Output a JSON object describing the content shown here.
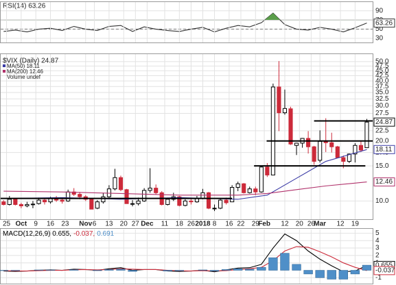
{
  "chart_data": [
    {
      "type": "line",
      "legend": "RSI(14) 63.26",
      "xlim": [
        -1,
        126
      ],
      "ylim": [
        21,
        109
      ],
      "yticks": [
        30,
        50,
        70,
        90
      ],
      "grid": true,
      "midline": 50,
      "overbought": 70,
      "overbought_color": "#5a9e4a",
      "end_labels": true,
      "x": [
        0,
        4,
        8,
        12,
        16,
        20,
        24,
        28,
        32,
        36,
        40,
        44,
        48,
        52,
        56,
        60,
        64,
        68,
        72,
        76,
        80,
        84,
        88,
        92,
        96,
        100,
        104,
        108,
        112,
        116,
        120,
        124
      ],
      "series": [
        {
          "color": "#333333",
          "values": [
            45,
            48,
            44,
            50,
            52,
            47,
            56,
            50,
            47,
            56,
            58,
            45,
            55,
            50,
            47,
            45,
            50,
            54,
            44,
            52,
            58,
            55,
            64,
            85,
            60,
            50,
            48,
            54,
            50,
            44,
            53,
            63.26
          ]
        }
      ]
    },
    {
      "type": "candlestick",
      "title": "$VIX (Daily) 24.87",
      "legend_extra": "Volume undef",
      "scale": "log",
      "xlim": [
        -1,
        126
      ],
      "ylim": [
        8.1,
        52.4
      ],
      "grid": true,
      "end_labels": true,
      "up_color": "#000000",
      "down_color": "#cc2a3a",
      "yticks": [
        {
          "value": 10,
          "label": "10.0"
        },
        {
          "value": 15,
          "label": "15.0"
        },
        {
          "value": 17.5,
          "label": "17.5"
        },
        {
          "value": 20,
          "label": "20.0"
        },
        {
          "value": 22.5,
          "label": "22.5"
        },
        {
          "value": 27.5,
          "label": "27.5"
        },
        {
          "value": 30,
          "label": "30.0"
        },
        {
          "value": 32.5,
          "label": "32.5"
        },
        {
          "value": 35,
          "label": "35.0"
        },
        {
          "value": 37.5,
          "label": "37.5"
        },
        {
          "value": 40,
          "label": "40.0"
        },
        {
          "value": 42.5,
          "label": "42.5"
        },
        {
          "value": 45,
          "label": "45.0"
        },
        {
          "value": 47.5,
          "label": "47.5"
        },
        {
          "value": 50,
          "label": "50.0"
        }
      ],
      "xticks": [
        {
          "value": 1,
          "label": "25"
        },
        {
          "value": 6,
          "label": "Oct"
        },
        {
          "value": 11,
          "label": "9"
        },
        {
          "value": 16,
          "label": "16"
        },
        {
          "value": 21,
          "label": "23"
        },
        {
          "value": 28,
          "label": "Nov"
        },
        {
          "value": 31,
          "label": "6"
        },
        {
          "value": 36,
          "label": "13"
        },
        {
          "value": 41,
          "label": "20"
        },
        {
          "value": 45,
          "label": "27"
        },
        {
          "value": 49,
          "label": "Dec"
        },
        {
          "value": 55,
          "label": "11"
        },
        {
          "value": 60,
          "label": "18"
        },
        {
          "value": 64,
          "label": "26"
        },
        {
          "value": 68,
          "label": "2018"
        },
        {
          "value": 72,
          "label": "8"
        },
        {
          "value": 77,
          "label": "16"
        },
        {
          "value": 81,
          "label": "22"
        },
        {
          "value": 86,
          "label": "29"
        },
        {
          "value": 89,
          "label": "Feb"
        },
        {
          "value": 96,
          "label": "12"
        },
        {
          "value": 101,
          "label": "20"
        },
        {
          "value": 105,
          "label": "26"
        },
        {
          "value": 108,
          "label": "Mar"
        },
        {
          "value": 115,
          "label": "12"
        },
        {
          "value": 120,
          "label": "19"
        }
      ],
      "x": [
        0,
        2,
        4,
        6,
        8,
        10,
        12,
        14,
        16,
        18,
        20,
        22,
        24,
        26,
        28,
        30,
        32,
        34,
        36,
        38,
        40,
        42,
        44,
        46,
        48,
        50,
        52,
        54,
        56,
        58,
        60,
        62,
        64,
        66,
        68,
        70,
        72,
        74,
        76,
        78,
        80,
        82,
        84,
        86,
        88,
        90,
        92,
        94,
        96,
        98,
        100,
        102,
        104,
        106,
        108,
        110,
        112,
        114,
        116,
        118,
        120,
        122,
        124
      ],
      "open": [
        9.9,
        9.6,
        10.2,
        9.6,
        9.45,
        9.6,
        9.7,
        10.1,
        9.9,
        10.3,
        10.1,
        10,
        11.1,
        10.8,
        10.5,
        10.2,
        9.2,
        9.9,
        10.5,
        11.5,
        13.1,
        11.4,
        9.7,
        9.7,
        10,
        11.3,
        11.6,
        11,
        9.6,
        10.2,
        10.5,
        9.5,
        10,
        9.9,
        10.3,
        11,
        9.2,
        9.2,
        10.1,
        9.9,
        11.7,
        12.2,
        11,
        11.5,
        11.1,
        14.8,
        13.5,
        37.3,
        27.7,
        29,
        19,
        19.5,
        20.6,
        18.7,
        16,
        20,
        19.6,
        18.7,
        16.5,
        15.8,
        17.2,
        19,
        18.5
      ],
      "high": [
        10.1,
        10.6,
        10.3,
        9.8,
        9.9,
        10.0,
        10.4,
        10.3,
        10.5,
        10.6,
        10.3,
        11.4,
        11.6,
        11.1,
        10.7,
        10.3,
        10.1,
        11.0,
        12.0,
        14.5,
        13.4,
        11.5,
        10.1,
        10.4,
        11.6,
        14.6,
        12.1,
        11.2,
        10.4,
        11.0,
        10.6,
        10.2,
        10.3,
        10.6,
        11.5,
        11.1,
        9.6,
        10.3,
        10.4,
        12.0,
        12.5,
        12.3,
        11.8,
        11.8,
        15.0,
        15.5,
        38.8,
        50.3,
        36.2,
        29.7,
        19.6,
        20.7,
        22.4,
        18.9,
        22.6,
        26.0,
        22.0,
        18.9,
        16.9,
        17.3,
        19.5,
        20.1,
        25.8
      ],
      "low": [
        9.5,
        9.5,
        9.5,
        9.2,
        9.3,
        9.2,
        9.6,
        9.6,
        9.7,
        9.9,
        9.7,
        9.9,
        10.6,
        10.2,
        10.0,
        9.1,
        9.1,
        9.7,
        10.4,
        11.3,
        11.2,
        9.7,
        9.4,
        9.5,
        9.9,
        11.0,
        10.8,
        9.5,
        9.5,
        10.0,
        9.4,
        9.4,
        9.6,
        9.8,
        10.2,
        9.1,
        8.9,
        9.1,
        9.6,
        9.9,
        11.2,
        10.9,
        10.9,
        10.7,
        11.0,
        13.2,
        13.5,
        22.4,
        27.1,
        19.1,
        17.0,
        18.5,
        17.3,
        15.2,
        15.6,
        17.6,
        17.5,
        16.5,
        14.6,
        15.5,
        15.6,
        17.6,
        18.5
      ],
      "close": [
        9.6,
        10.2,
        9.6,
        9.45,
        9.6,
        9.65,
        10.1,
        9.9,
        10.3,
        10.1,
        9.97,
        11.1,
        10.8,
        10.5,
        10.2,
        9.1,
        9.9,
        10.5,
        11.5,
        13.1,
        11.4,
        9.7,
        9.7,
        10.0,
        11.3,
        11.6,
        11.0,
        9.6,
        10.2,
        10.5,
        9.5,
        10.0,
        9.9,
        10.3,
        11.0,
        9.2,
        9.2,
        10.1,
        9.8,
        11.7,
        12.2,
        11.0,
        11.5,
        11.1,
        14.8,
        13.5,
        37.3,
        27.7,
        29.1,
        19.3,
        19.5,
        20.6,
        18.7,
        15.8,
        19.9,
        19.6,
        18.7,
        16.5,
        15.8,
        17.2,
        19.0,
        18.0,
        24.87
      ],
      "series": [
        {
          "name": "MA(50) 18.11",
          "color": "#3b3ba6",
          "x": [
            0,
            20,
            40,
            60,
            80,
            90,
            100,
            110,
            124
          ],
          "values": [
            10.3,
            10.4,
            10.2,
            10.4,
            10.2,
            10.7,
            13.0,
            15.8,
            18.11
          ]
        },
        {
          "name": "MA(200) 12.46",
          "color": "#b0306a",
          "x": [
            0,
            20,
            40,
            60,
            80,
            90,
            100,
            110,
            124
          ],
          "values": [
            11.2,
            11.1,
            10.9,
            10.7,
            10.7,
            10.9,
            11.4,
            11.9,
            12.46
          ]
        }
      ],
      "lines": [
        {
          "value": 10.3,
          "x": [
            -1,
            78
          ]
        },
        {
          "value": 15.0,
          "x": [
            85.5,
            123.5
          ]
        },
        {
          "value": 20.0,
          "x": [
            89.8,
            126
          ]
        },
        {
          "value": 25.2,
          "x": [
            106,
            126
          ]
        }
      ]
    },
    {
      "type": "line",
      "legend": [
        "MACD(12,26,9) 0.655,",
        "-0.037,",
        "0.691"
      ],
      "xlim": [
        -1,
        126
      ],
      "ylim": [
        -1.8,
        5.5
      ],
      "yticks": [
        -1,
        1,
        2,
        3,
        4,
        5
      ],
      "grid": true,
      "end_labels": true,
      "x": [
        0,
        4,
        8,
        12,
        16,
        20,
        24,
        28,
        32,
        36,
        40,
        44,
        48,
        52,
        56,
        60,
        64,
        68,
        72,
        76,
        80,
        84,
        88,
        92,
        96,
        100,
        104,
        108,
        112,
        116,
        120,
        124
      ],
      "series": [
        {
          "color": "#000000",
          "values": [
            -0.1,
            -0.15,
            -0.1,
            0,
            0.05,
            0,
            0.15,
            0.1,
            0,
            0.2,
            0.35,
            0,
            0.1,
            0.1,
            -0.1,
            -0.15,
            -0.1,
            0,
            -0.2,
            0.05,
            0.3,
            0.35,
            0.8,
            3.0,
            4.9,
            4.0,
            2.6,
            1.5,
            0.6,
            -0.2,
            -0.1,
            0.655
          ]
        },
        {
          "color": "#cc2a3a",
          "values": [
            -0.05,
            -0.1,
            -0.1,
            -0.05,
            0,
            0,
            0.07,
            0.1,
            0.05,
            0.1,
            0.2,
            0.15,
            0.1,
            0.1,
            0,
            -0.07,
            -0.1,
            -0.05,
            -0.1,
            -0.05,
            0.1,
            0.2,
            0.4,
            1.3,
            2.6,
            3.2,
            3.1,
            2.5,
            1.8,
            1.0,
            0.4,
            -0.037
          ]
        },
        {
          "color": "#4f8fc8",
          "kind": "bar",
          "values": [
            -0.05,
            -0.05,
            0,
            0.05,
            0.05,
            0,
            0.08,
            0,
            -0.05,
            0.1,
            0.15,
            -0.15,
            0,
            0,
            -0.1,
            -0.08,
            0,
            0.05,
            -0.1,
            0.1,
            0.2,
            0.15,
            0.4,
            1.7,
            2.3,
            0.8,
            -0.5,
            -1.0,
            -1.2,
            -1.2,
            -0.5,
            0.691
          ]
        }
      ]
    }
  ]
}
